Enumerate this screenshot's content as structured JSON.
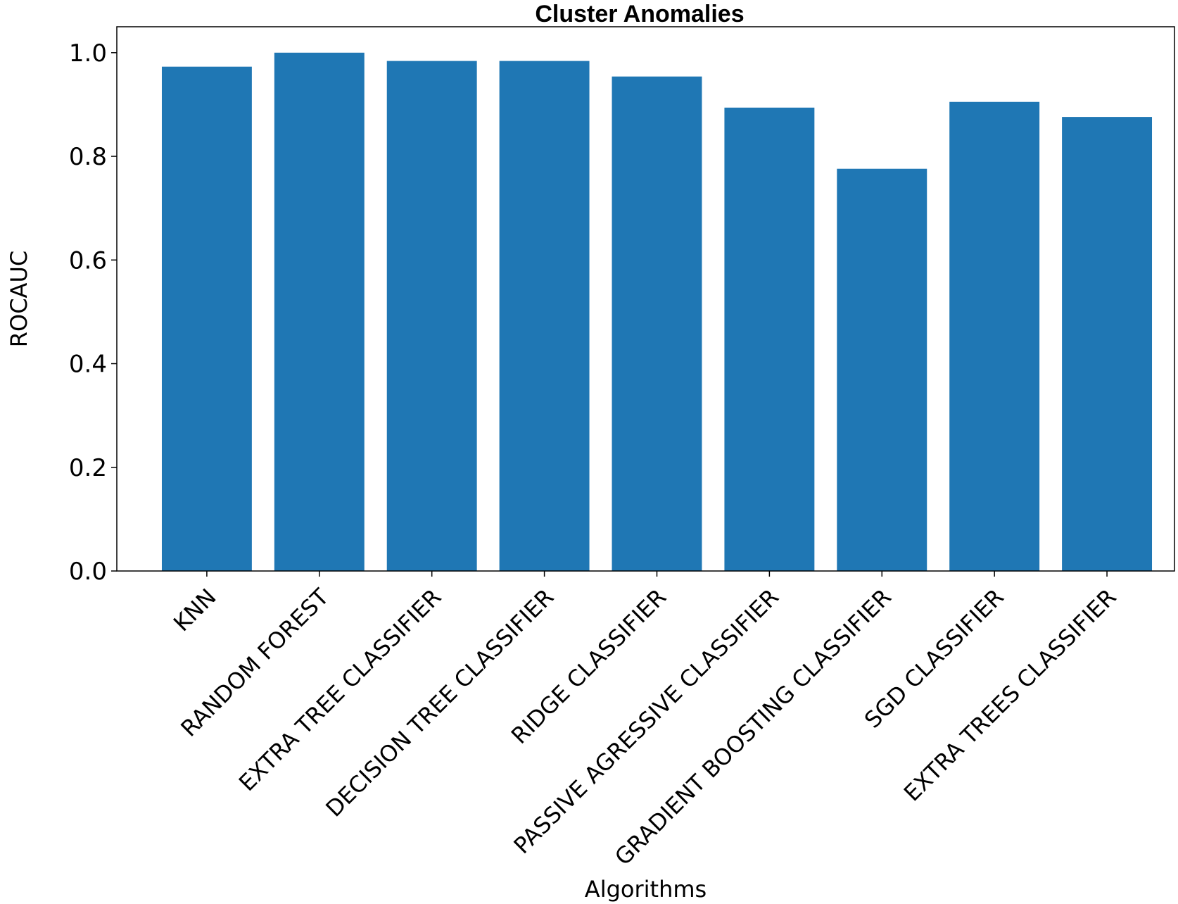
{
  "chart_data": {
    "type": "bar",
    "title": "Cluster Anomalies",
    "xlabel": "Algorithms",
    "ylabel": "ROCAUC",
    "categories": [
      "KNN",
      "RANDOM FOREST",
      "EXTRA TREE CLASSIFIER",
      "DECISION TREE CLASSIFIER",
      "RIDGE CLASSIFIER",
      "PASSIVE AGRESSIVE CLASSIFIER",
      "GRADIENT BOOSTING CLASSIFIER",
      "SGD CLASSIFIER",
      "EXTRA TREES CLASSIFIER"
    ],
    "values": [
      0.973,
      1.0,
      0.984,
      0.984,
      0.954,
      0.894,
      0.776,
      0.905,
      0.876
    ],
    "yticks": [
      "0.0",
      "0.2",
      "0.4",
      "0.6",
      "0.8",
      "1.0"
    ],
    "ylim": [
      0,
      1.05
    ],
    "bar_color": "#1f77b4",
    "grid": false,
    "legend": "none"
  }
}
